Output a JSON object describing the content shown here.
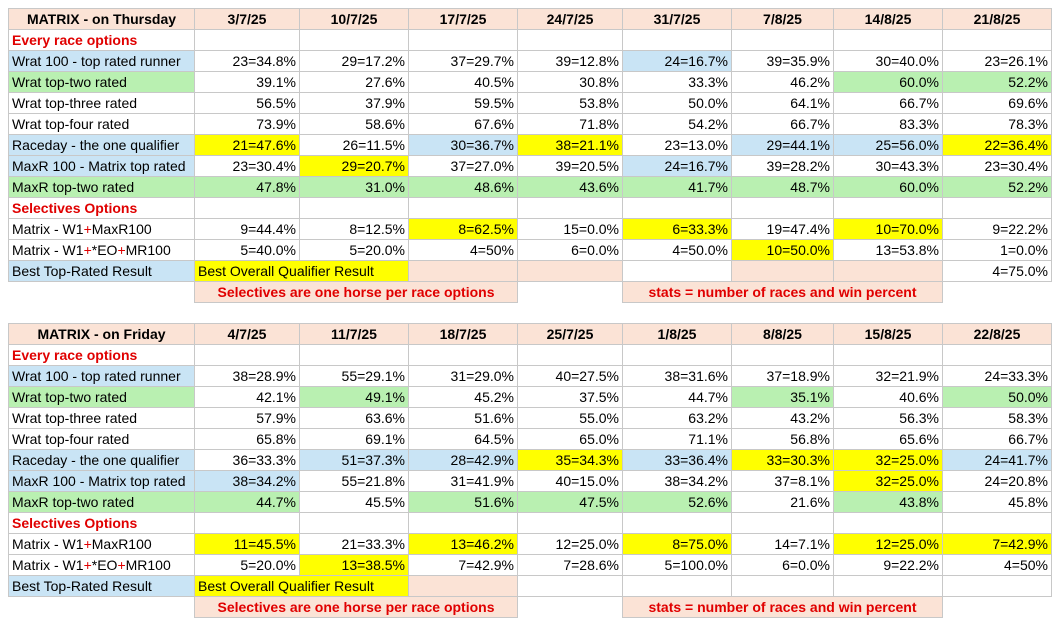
{
  "colors": {
    "blue": "#c9e4f5",
    "green": "#b9f0b1",
    "yellow": "#ffff00",
    "peach": "#fbe3d6",
    "red_text": "#e00000"
  },
  "tables": [
    {
      "title": "MATRIX - on Thursday",
      "dates": [
        "3/7/25",
        "10/7/25",
        "17/7/25",
        "24/7/25",
        "31/7/25",
        "7/8/25",
        "14/8/25",
        "21/8/25"
      ],
      "sections": [
        {
          "heading": "Every race options",
          "rows": [
            {
              "label": "Wrat 100 - top rated runner",
              "lc": "blue",
              "cells": [
                {
                  "v": "23=34.8%"
                },
                {
                  "v": "29=17.2%"
                },
                {
                  "v": "37=29.7%"
                },
                {
                  "v": "39=12.8%"
                },
                {
                  "v": "24=16.7%",
                  "c": "blue"
                },
                {
                  "v": "39=35.9%"
                },
                {
                  "v": "30=40.0%"
                },
                {
                  "v": "23=26.1%"
                }
              ]
            },
            {
              "label": "Wrat top-two rated",
              "lc": "green",
              "cells": [
                {
                  "v": "39.1%"
                },
                {
                  "v": "27.6%"
                },
                {
                  "v": "40.5%"
                },
                {
                  "v": "30.8%"
                },
                {
                  "v": "33.3%"
                },
                {
                  "v": "46.2%"
                },
                {
                  "v": "60.0%",
                  "c": "green"
                },
                {
                  "v": "52.2%",
                  "c": "green"
                }
              ]
            },
            {
              "label": "Wrat top-three rated",
              "cells": [
                {
                  "v": "56.5%"
                },
                {
                  "v": "37.9%"
                },
                {
                  "v": "59.5%"
                },
                {
                  "v": "53.8%"
                },
                {
                  "v": "50.0%"
                },
                {
                  "v": "64.1%"
                },
                {
                  "v": "66.7%"
                },
                {
                  "v": "69.6%"
                }
              ]
            },
            {
              "label": "Wrat top-four rated",
              "cells": [
                {
                  "v": "73.9%"
                },
                {
                  "v": "58.6%"
                },
                {
                  "v": "67.6%"
                },
                {
                  "v": "71.8%"
                },
                {
                  "v": "54.2%"
                },
                {
                  "v": "66.7%"
                },
                {
                  "v": "83.3%"
                },
                {
                  "v": "78.3%"
                }
              ]
            },
            {
              "label": "Raceday - the one qualifier",
              "lc": "blue",
              "cells": [
                {
                  "v": "21=47.6%",
                  "c": "yellow"
                },
                {
                  "v": "26=11.5%"
                },
                {
                  "v": "30=36.7%",
                  "c": "blue"
                },
                {
                  "v": "38=21.1%",
                  "c": "yellow"
                },
                {
                  "v": "23=13.0%"
                },
                {
                  "v": "29=44.1%",
                  "c": "blue"
                },
                {
                  "v": "25=56.0%",
                  "c": "blue"
                },
                {
                  "v": "22=36.4%",
                  "c": "yellow"
                }
              ]
            },
            {
              "label": "MaxR 100 - Matrix top rated",
              "lc": "blue",
              "cells": [
                {
                  "v": "23=30.4%"
                },
                {
                  "v": "29=20.7%",
                  "c": "yellow"
                },
                {
                  "v": "37=27.0%"
                },
                {
                  "v": "39=20.5%"
                },
                {
                  "v": "24=16.7%",
                  "c": "blue"
                },
                {
                  "v": "39=28.2%"
                },
                {
                  "v": "30=43.3%"
                },
                {
                  "v": "23=30.4%"
                }
              ]
            },
            {
              "label": "MaxR top-two rated",
              "lc": "green",
              "rowc": "green",
              "cells": [
                {
                  "v": "47.8%"
                },
                {
                  "v": "31.0%"
                },
                {
                  "v": "48.6%"
                },
                {
                  "v": "43.6%"
                },
                {
                  "v": "41.7%"
                },
                {
                  "v": "48.7%"
                },
                {
                  "v": "60.0%"
                },
                {
                  "v": "52.2%"
                }
              ]
            }
          ]
        },
        {
          "heading": "Selectives Options",
          "rows": [
            {
              "label": [
                "Matrix - W1",
                "+",
                "MaxR100"
              ],
              "cells": [
                {
                  "v": "9=44.4%"
                },
                {
                  "v": "8=12.5%"
                },
                {
                  "v": "8=62.5%",
                  "c": "yellow"
                },
                {
                  "v": "15=0.0%"
                },
                {
                  "v": "6=33.3%",
                  "c": "yellow"
                },
                {
                  "v": "19=47.4%"
                },
                {
                  "v": "10=70.0%",
                  "c": "yellow"
                },
                {
                  "v": "9=22.2%"
                }
              ]
            },
            {
              "label": [
                "Matrix - W1",
                "+",
                "*EO",
                "+",
                "MR100"
              ],
              "cells": [
                {
                  "v": "5=40.0%"
                },
                {
                  "v": "5=20.0%"
                },
                {
                  "v": "4=50%"
                },
                {
                  "v": "6=0.0%"
                },
                {
                  "v": "4=50.0%"
                },
                {
                  "v": "10=50.0%",
                  "c": "yellow"
                },
                {
                  "v": "13=53.8%"
                },
                {
                  "v": "1=0.0%"
                }
              ]
            }
          ]
        }
      ],
      "best_label": "Best Top-Rated Result",
      "legend_text": "Best Overall Qualifier Result",
      "best_cells": [
        {
          "v": "",
          "c": "yellow"
        },
        {
          "v": "",
          "c": "peach"
        },
        {
          "v": "",
          "c": "peach"
        },
        {
          "v": ""
        },
        {
          "v": "",
          "c": "peach"
        },
        {
          "v": "",
          "c": "peach"
        },
        {
          "v": "4=75.0%"
        }
      ],
      "banner_left": "Selectives are one horse per race options",
      "banner_right": "stats = number of races and win percent"
    },
    {
      "title": "MATRIX - on Friday",
      "dates": [
        "4/7/25",
        "11/7/25",
        "18/7/25",
        "25/7/25",
        "1/8/25",
        "8/8/25",
        "15/8/25",
        "22/8/25"
      ],
      "sections": [
        {
          "heading": "Every race options",
          "rows": [
            {
              "label": "Wrat 100 - top rated runner",
              "lc": "blue",
              "cells": [
                {
                  "v": "38=28.9%"
                },
                {
                  "v": "55=29.1%"
                },
                {
                  "v": "31=29.0%"
                },
                {
                  "v": "40=27.5%"
                },
                {
                  "v": "38=31.6%"
                },
                {
                  "v": "37=18.9%"
                },
                {
                  "v": "32=21.9%"
                },
                {
                  "v": "24=33.3%"
                }
              ]
            },
            {
              "label": "Wrat top-two rated",
              "lc": "green",
              "cells": [
                {
                  "v": "42.1%"
                },
                {
                  "v": "49.1%",
                  "c": "green"
                },
                {
                  "v": "45.2%"
                },
                {
                  "v": "37.5%"
                },
                {
                  "v": "44.7%"
                },
                {
                  "v": "35.1%",
                  "c": "green"
                },
                {
                  "v": "40.6%"
                },
                {
                  "v": "50.0%",
                  "c": "green"
                }
              ]
            },
            {
              "label": "Wrat top-three rated",
              "cells": [
                {
                  "v": "57.9%"
                },
                {
                  "v": "63.6%"
                },
                {
                  "v": "51.6%"
                },
                {
                  "v": "55.0%"
                },
                {
                  "v": "63.2%"
                },
                {
                  "v": "43.2%"
                },
                {
                  "v": "56.3%"
                },
                {
                  "v": "58.3%"
                }
              ]
            },
            {
              "label": "Wrat top-four rated",
              "cells": [
                {
                  "v": "65.8%"
                },
                {
                  "v": "69.1%"
                },
                {
                  "v": "64.5%"
                },
                {
                  "v": "65.0%"
                },
                {
                  "v": "71.1%"
                },
                {
                  "v": "56.8%"
                },
                {
                  "v": "65.6%"
                },
                {
                  "v": "66.7%"
                }
              ]
            },
            {
              "label": "Raceday - the one qualifier",
              "lc": "blue",
              "cells": [
                {
                  "v": "36=33.3%"
                },
                {
                  "v": "51=37.3%",
                  "c": "blue"
                },
                {
                  "v": "28=42.9%",
                  "c": "blue"
                },
                {
                  "v": "35=34.3%",
                  "c": "yellow"
                },
                {
                  "v": "33=36.4%",
                  "c": "blue"
                },
                {
                  "v": "33=30.3%",
                  "c": "yellow"
                },
                {
                  "v": "32=25.0%",
                  "c": "yellow"
                },
                {
                  "v": "24=41.7%",
                  "c": "blue"
                }
              ]
            },
            {
              "label": "MaxR 100 - Matrix top rated",
              "lc": "blue",
              "cells": [
                {
                  "v": "38=34.2%",
                  "c": "blue"
                },
                {
                  "v": "55=21.8%"
                },
                {
                  "v": "31=41.9%"
                },
                {
                  "v": "40=15.0%"
                },
                {
                  "v": "38=34.2%"
                },
                {
                  "v": "37=8.1%"
                },
                {
                  "v": "32=25.0%",
                  "c": "yellow"
                },
                {
                  "v": "24=20.8%"
                }
              ]
            },
            {
              "label": "MaxR top-two rated",
              "lc": "green",
              "cells": [
                {
                  "v": "44.7%",
                  "c": "green"
                },
                {
                  "v": "45.5%"
                },
                {
                  "v": "51.6%",
                  "c": "green"
                },
                {
                  "v": "47.5%",
                  "c": "green"
                },
                {
                  "v": "52.6%",
                  "c": "green"
                },
                {
                  "v": "21.6%"
                },
                {
                  "v": "43.8%",
                  "c": "green"
                },
                {
                  "v": "45.8%"
                }
              ]
            }
          ]
        },
        {
          "heading": "Selectives Options",
          "rows": [
            {
              "label": [
                "Matrix - W1",
                "+",
                "MaxR100"
              ],
              "cells": [
                {
                  "v": "11=45.5%",
                  "c": "yellow"
                },
                {
                  "v": "21=33.3%"
                },
                {
                  "v": "13=46.2%",
                  "c": "yellow"
                },
                {
                  "v": "12=25.0%"
                },
                {
                  "v": "8=75.0%",
                  "c": "yellow"
                },
                {
                  "v": "14=7.1%"
                },
                {
                  "v": "12=25.0%",
                  "c": "yellow"
                },
                {
                  "v": "7=42.9%",
                  "c": "yellow"
                }
              ]
            },
            {
              "label": [
                "Matrix - W1",
                "+",
                "*EO",
                "+",
                "MR100"
              ],
              "cells": [
                {
                  "v": "5=20.0%"
                },
                {
                  "v": "13=38.5%",
                  "c": "yellow"
                },
                {
                  "v": "7=42.9%"
                },
                {
                  "v": "7=28.6%"
                },
                {
                  "v": "5=100.0%"
                },
                {
                  "v": "6=0.0%"
                },
                {
                  "v": "9=22.2%"
                },
                {
                  "v": "4=50%"
                }
              ]
            }
          ]
        }
      ],
      "best_label": "Best Top-Rated Result",
      "legend_text": "Best Overall Qualifier Result",
      "best_cells": [
        {
          "v": "",
          "c": "yellow"
        },
        {
          "v": "",
          "c": "peach"
        },
        {
          "v": ""
        },
        {
          "v": ""
        },
        {
          "v": ""
        },
        {
          "v": ""
        },
        {
          "v": ""
        }
      ],
      "banner_left": "Selectives are one horse per race options",
      "banner_right": "stats = number of races and win percent"
    }
  ]
}
